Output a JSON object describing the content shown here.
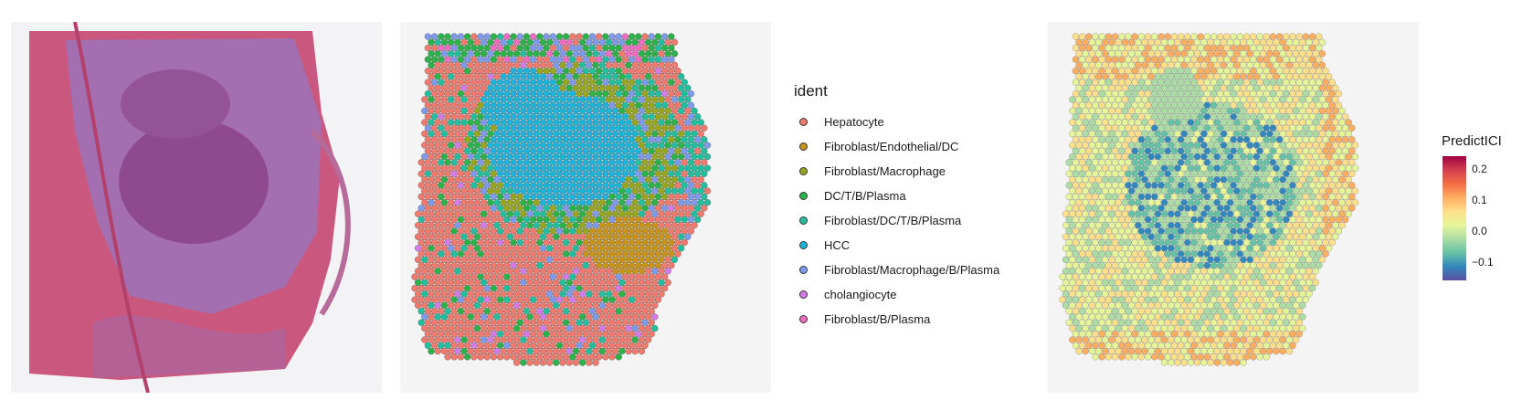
{
  "panels": {
    "he": {
      "name": "H&E tissue image"
    },
    "ident": {
      "legend_title": "ident",
      "categories": [
        {
          "label": "Hepatocyte",
          "color": "#f07a6e"
        },
        {
          "label": "Fibroblast/Endothelial/DC",
          "color": "#c9931a"
        },
        {
          "label": "Fibroblast/Macrophage",
          "color": "#96a61e"
        },
        {
          "label": "DC/T/B/Plasma",
          "color": "#2bb34a"
        },
        {
          "label": "Fibroblast/DC/T/B/Plasma",
          "color": "#22bf9e"
        },
        {
          "label": "HCC",
          "color": "#1fb3d9"
        },
        {
          "label": "Fibroblast/Macrophage/B/Plasma",
          "color": "#7f9aeb"
        },
        {
          "label": "cholangiocyte",
          "color": "#d57be8"
        },
        {
          "label": "Fibroblast/B/Plasma",
          "color": "#f06cc1"
        }
      ]
    },
    "ici": {
      "legend_title": "PredictICI",
      "range": [
        -0.16,
        0.24
      ],
      "ticks": [
        "0.2",
        "0.1",
        "0.0",
        "−0.1"
      ],
      "tick_values": [
        0.2,
        0.1,
        0.0,
        -0.1
      ],
      "palette": [
        "#5e4fa2",
        "#3288bd",
        "#66c2a5",
        "#abdda4",
        "#e6f598",
        "#fee08b",
        "#fdae61",
        "#f46d43",
        "#d53e4f",
        "#9e0142"
      ]
    }
  }
}
